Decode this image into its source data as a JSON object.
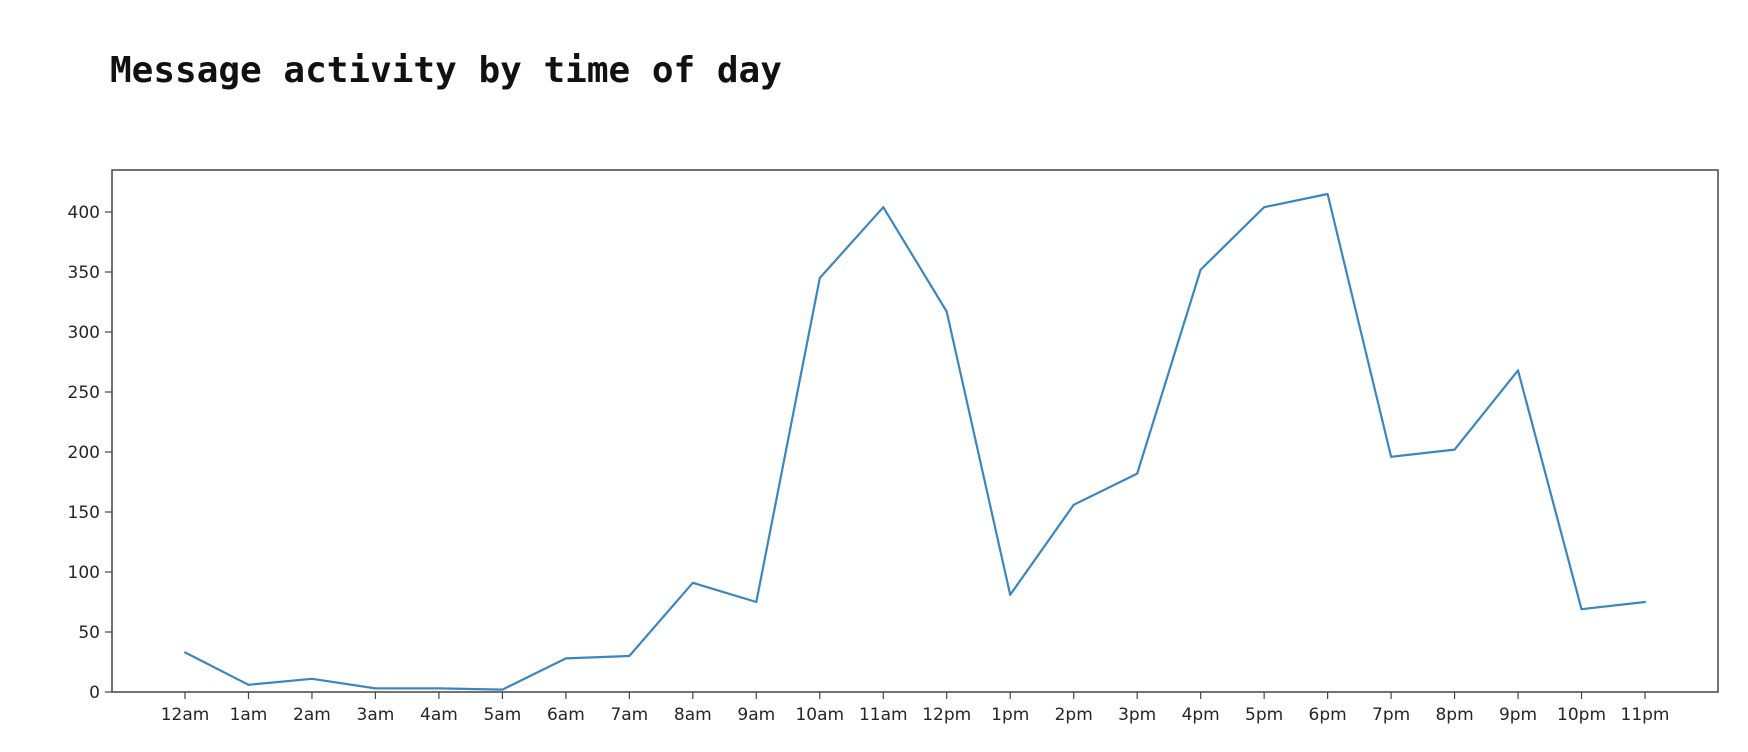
{
  "chart_data": {
    "type": "line",
    "title": "Message activity by time of day",
    "xlabel": "",
    "ylabel": "",
    "categories": [
      "12am",
      "1am",
      "2am",
      "3am",
      "4am",
      "5am",
      "6am",
      "7am",
      "8am",
      "9am",
      "10am",
      "11am",
      "12pm",
      "1pm",
      "2pm",
      "3pm",
      "4pm",
      "5pm",
      "6pm",
      "7pm",
      "8pm",
      "9pm",
      "10pm",
      "11pm"
    ],
    "series": [
      {
        "values": [
          33,
          6,
          11,
          3,
          3,
          2,
          28,
          30,
          91,
          75,
          345,
          404,
          317,
          81,
          156,
          182,
          352,
          404,
          415,
          196,
          202,
          268,
          69,
          75
        ]
      }
    ],
    "ylim": [
      0,
      435
    ],
    "yticks": [
      0,
      50,
      100,
      150,
      200,
      250,
      300,
      350,
      400
    ],
    "grid": false,
    "line_color": "#3a87c0"
  }
}
